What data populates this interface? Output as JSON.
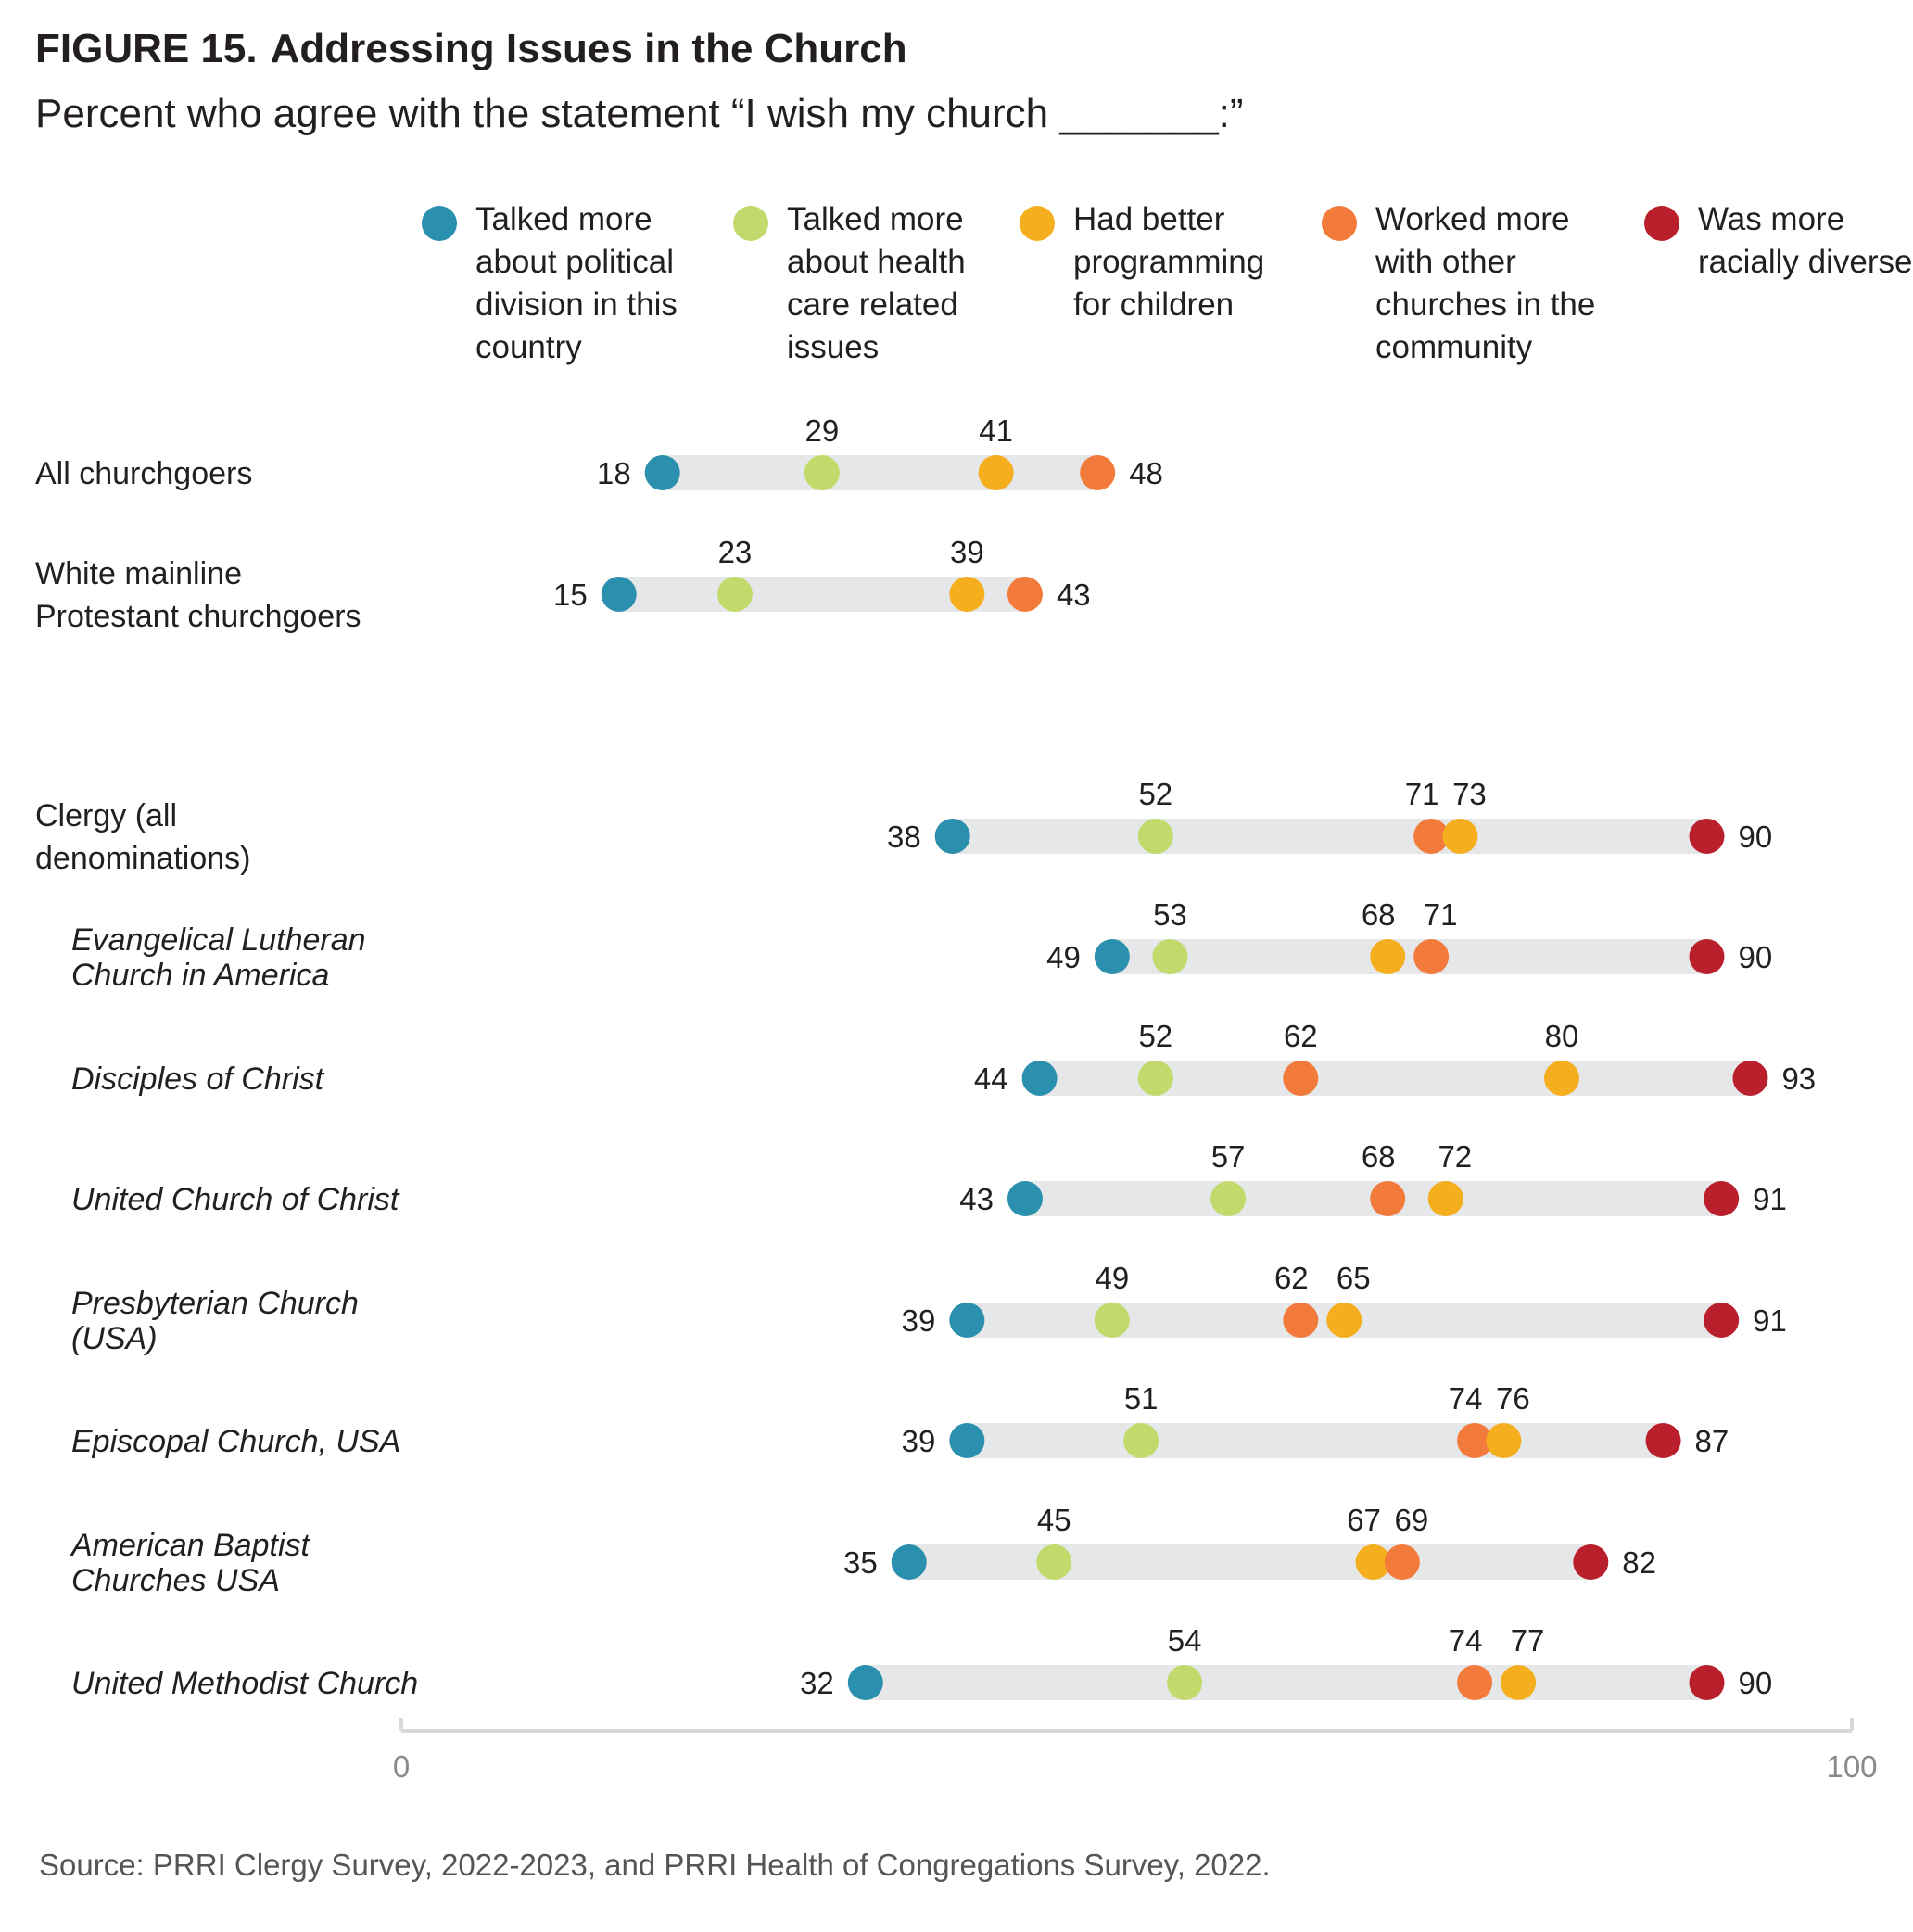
{
  "figure_label": "FIGURE 15.",
  "title": "Addressing Issues in the Church",
  "subtitle": "Percent who agree with the statement “I wish my church _______:”",
  "source": "Source: PRRI Clergy Survey, 2022-2023, and PRRI Health of Congregations Survey, 2022.",
  "legend": [
    {
      "key": "political",
      "label": "Talked more about political division in this country",
      "color": "#2b8fae"
    },
    {
      "key": "health",
      "label": "Talked more about health care related issues",
      "color": "#c2d96c"
    },
    {
      "key": "children",
      "label": "Had better programming for children",
      "color": "#f5ae1d"
    },
    {
      "key": "churches",
      "label": "Worked more with other churches in the community",
      "color": "#f27b3c"
    },
    {
      "key": "diverse",
      "label": "Was more racially diverse",
      "color": "#b9202c"
    }
  ],
  "chart_data": {
    "type": "dot-plot",
    "title": "Addressing Issues in the Church",
    "xlim": [
      0,
      100
    ],
    "ticks": [
      "0",
      "100"
    ],
    "series_keys": [
      "political",
      "health",
      "children",
      "churches",
      "diverse"
    ],
    "rows": [
      {
        "label": "All churchgoers",
        "italic": false,
        "values": {
          "political": 18,
          "health": 29,
          "children": 41,
          "churches": 48
        }
      },
      {
        "label": "White mainline Protestant churchgoers",
        "italic": false,
        "values": {
          "political": 15,
          "health": 23,
          "children": 39,
          "churches": 43
        }
      },
      {
        "label": "Clergy (all denominations)",
        "italic": false,
        "values": {
          "political": 38,
          "health": 52,
          "children": 73,
          "churches": 71,
          "diverse": 90
        }
      },
      {
        "label": "Evangelical Lutheran Church in America",
        "italic": true,
        "values": {
          "political": 49,
          "health": 53,
          "children": 68,
          "churches": 71,
          "diverse": 90
        }
      },
      {
        "label": "Disciples of Christ",
        "italic": true,
        "values": {
          "political": 44,
          "health": 52,
          "children": 80,
          "churches": 62,
          "diverse": 93
        }
      },
      {
        "label": "United Church of Christ",
        "italic": true,
        "values": {
          "political": 43,
          "health": 57,
          "children": 72,
          "churches": 68,
          "diverse": 91
        }
      },
      {
        "label": "Presbyterian Church (USA)",
        "italic": true,
        "values": {
          "political": 39,
          "health": 49,
          "children": 65,
          "churches": 62,
          "diverse": 91
        }
      },
      {
        "label": "Episcopal Church, USA",
        "italic": true,
        "values": {
          "political": 39,
          "health": 51,
          "children": 76,
          "churches": 74,
          "diverse": 87
        }
      },
      {
        "label": "American Baptist Churches USA",
        "italic": true,
        "values": {
          "political": 35,
          "health": 45,
          "children": 67,
          "churches": 69,
          "diverse": 82
        }
      },
      {
        "label": "United Methodist Church",
        "italic": true,
        "values": {
          "political": 32,
          "health": 54,
          "children": 77,
          "churches": 74,
          "diverse": 90
        }
      }
    ]
  }
}
